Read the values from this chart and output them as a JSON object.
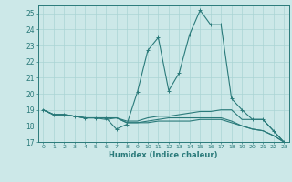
{
  "xlabel": "Humidex (Indice chaleur)",
  "ylabel": "",
  "xlim": [
    -0.5,
    23.5
  ],
  "ylim": [
    17,
    25.5
  ],
  "yticks": [
    17,
    18,
    19,
    20,
    21,
    22,
    23,
    24,
    25
  ],
  "xticks": [
    0,
    1,
    2,
    3,
    4,
    5,
    6,
    7,
    8,
    9,
    10,
    11,
    12,
    13,
    14,
    15,
    16,
    17,
    18,
    19,
    20,
    21,
    22,
    23
  ],
  "bg_color": "#cce8e8",
  "line_color": "#2a7a7a",
  "grid_color": "#aad4d4",
  "series": [
    [
      19.0,
      18.7,
      18.7,
      18.6,
      18.5,
      18.5,
      18.5,
      17.8,
      18.1,
      20.1,
      22.7,
      23.5,
      20.2,
      21.3,
      23.7,
      25.2,
      24.3,
      24.3,
      19.7,
      19.0,
      18.4,
      18.4,
      17.7,
      17.0
    ],
    [
      19.0,
      18.7,
      18.7,
      18.6,
      18.5,
      18.5,
      18.5,
      18.5,
      18.3,
      18.3,
      18.5,
      18.6,
      18.6,
      18.7,
      18.8,
      18.9,
      18.9,
      19.0,
      19.0,
      18.4,
      18.4,
      18.4,
      17.7,
      17.0
    ],
    [
      19.0,
      18.7,
      18.7,
      18.6,
      18.5,
      18.5,
      18.5,
      18.5,
      18.2,
      18.2,
      18.3,
      18.4,
      18.5,
      18.5,
      18.5,
      18.5,
      18.5,
      18.5,
      18.3,
      18.0,
      17.8,
      17.7,
      17.4,
      17.0
    ],
    [
      19.0,
      18.7,
      18.7,
      18.6,
      18.5,
      18.5,
      18.4,
      18.5,
      18.2,
      18.2,
      18.2,
      18.3,
      18.3,
      18.3,
      18.3,
      18.4,
      18.4,
      18.4,
      18.2,
      18.0,
      17.8,
      17.7,
      17.4,
      17.0
    ]
  ],
  "markers_series": 0
}
